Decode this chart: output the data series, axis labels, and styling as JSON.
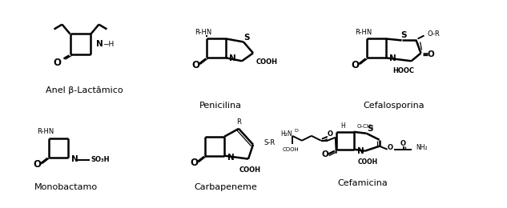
{
  "bg_color": "#ffffff",
  "labels": {
    "anel": "Anel β-Lactâmico",
    "penicilina": "Penicilina",
    "cefalosporina": "Cefalosporina",
    "monobactamo": "Monobactamo",
    "carbapeneme": "Carbapeneme",
    "cefamicina": "Cefamicina"
  },
  "label_fontsize": 8,
  "figsize": [
    6.33,
    2.6
  ],
  "dpi": 100
}
